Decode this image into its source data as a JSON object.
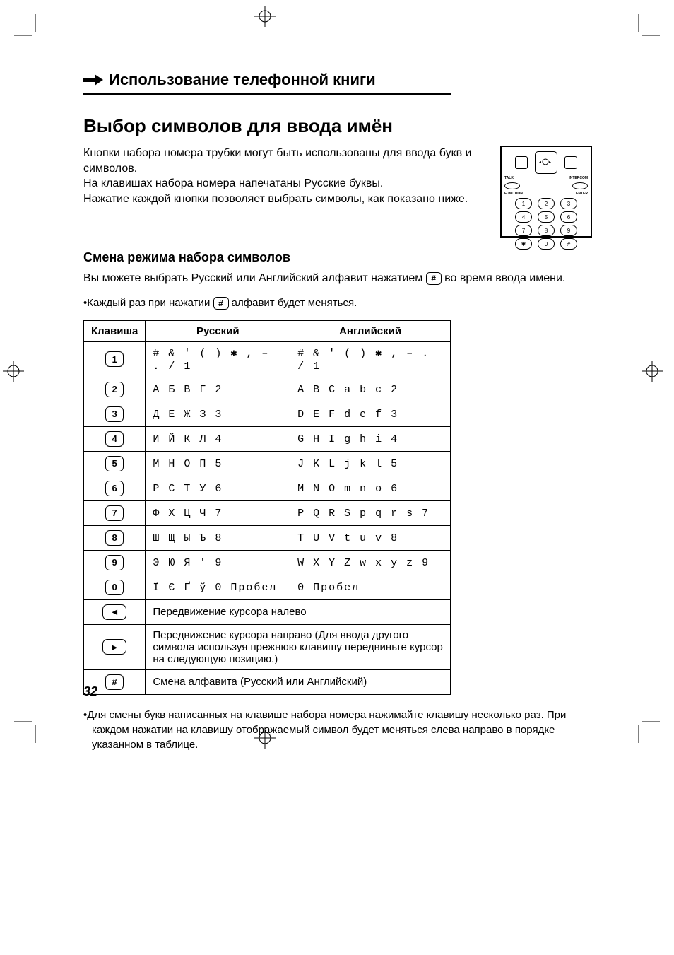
{
  "section_header": "Использование телефонной книги",
  "main_heading": "Выбор символов для ввода имён",
  "intro": "Кнопки набора номера трубки могут быть использованы для ввода букв и символов.\nНа клавишах набора номера напечатаны Русские буквы.\nНажатие каждой кнопки позволяет выбрать символы, как показано ниже.",
  "sub_heading": "Смена режима набора символов",
  "mode_text_pre": "Вы можете выбрать Русский или Английский алфавит нажатием ",
  "mode_text_post": " во время ввода имени.",
  "hash_key": "#",
  "bullet1_pre": "•Каждый раз при нажатии ",
  "bullet1_post": " алфавит будет меняться.",
  "table": {
    "headers": {
      "key": "Клавиша",
      "rus": "Русский",
      "eng": "Английский"
    },
    "rows": [
      {
        "key": "1",
        "rus": "# & ' ( ) ✱ , – . / 1",
        "eng": "# & ' ( ) ✱ , – . / 1"
      },
      {
        "key": "2",
        "rus": "А Б В Г 2",
        "eng": "A B C a b c 2"
      },
      {
        "key": "3",
        "rus": "Д Е Ж З 3",
        "eng": "D E F d e f 3"
      },
      {
        "key": "4",
        "rus": "И Й К Л 4",
        "eng": "G H I g h i 4"
      },
      {
        "key": "5",
        "rus": "М Н О П 5",
        "eng": "J K L j k l 5"
      },
      {
        "key": "6",
        "rus": "Р С Т У 6",
        "eng": "M N O m n o 6"
      },
      {
        "key": "7",
        "rus": "Ф Х Ц Ч 7",
        "eng": "P Q R S p q r s 7"
      },
      {
        "key": "8",
        "rus": "Ш Щ Ы Ъ 8",
        "eng": "T U V t u v 8"
      },
      {
        "key": "9",
        "rus": "Э Ю Я ' 9",
        "eng": "W X Y Z w x y z 9"
      },
      {
        "key": "0",
        "rus": "Ї Є Ґ ў 0  Пробел",
        "eng": "0  Пробел"
      }
    ],
    "left_arrow": "◄",
    "left_text": "Передвижение курсора налево",
    "right_arrow": "►",
    "right_text": "Передвижение курсора направо (Для ввода другого символа используя прежнюю клавишу передвиньте курсор на следующую позицию.)",
    "hash_row_key": "#",
    "hash_row_text": "Смена алфавита (Русский или Английский)"
  },
  "footnote": "•Для смены букв написанных на клавише набора номера нажимайте клавишу несколько раз. При каждом нажатии на клавишу отображаемый символ будет меняться слева направо в порядке указанном в таблице.",
  "page_number": "32",
  "keypad": {
    "labels": {
      "talk": "TALK",
      "intercom": "INTERCOM",
      "function": "FUNCTION",
      "enter": "ENTER"
    }
  }
}
